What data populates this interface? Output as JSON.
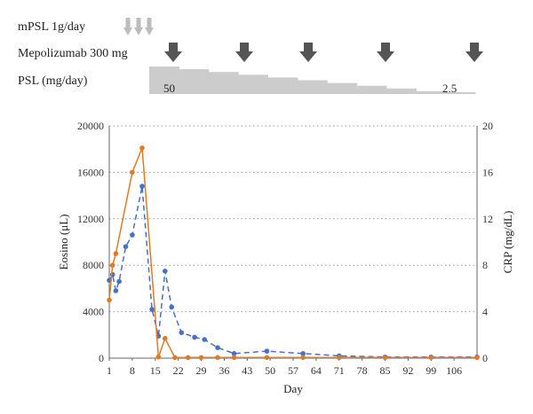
{
  "treatment": {
    "mpsl_label": "mPSL 1g/day",
    "mepolizumab_label": "Mepolizumab 300 mg",
    "psl_label": "PSL (mg/day)",
    "psl_start_value": "50",
    "psl_end_value": "2.5",
    "mpsl_doses": 3,
    "mepolizumab_doses": 5,
    "psl_step_levels": [
      50,
      45,
      40,
      35,
      30,
      25,
      20,
      15,
      10,
      5,
      2.5
    ]
  },
  "chart_data": {
    "type": "line",
    "xlabel": "Day",
    "ylabel_left": "Eosino (μL)",
    "ylabel_right": "CRP (mg/dL)",
    "x_ticks": [
      "1",
      "8",
      "15",
      "22",
      "29",
      "36",
      "43",
      "50",
      "57",
      "64",
      "71",
      "78",
      "85",
      "92",
      "99",
      "106"
    ],
    "y_left_ticks": [
      "0",
      "4000",
      "8000",
      "12000",
      "16000",
      "20000"
    ],
    "y_right_ticks": [
      "0",
      "4",
      "8",
      "12",
      "16",
      "20"
    ],
    "xlim": [
      1,
      113
    ],
    "ylim_left": [
      0,
      20000
    ],
    "ylim_right": [
      0,
      20
    ],
    "grid": true,
    "series": [
      {
        "axis": "left",
        "color": "#4472c4",
        "style": "dashed",
        "x": [
          1,
          2,
          3,
          4,
          6,
          8,
          11,
          14,
          16,
          18,
          20,
          23,
          27,
          30,
          34,
          39,
          49,
          60,
          71,
          85,
          99,
          113
        ],
        "values": [
          6700,
          7200,
          5800,
          6600,
          9600,
          10600,
          14800,
          4200,
          1900,
          7500,
          4400,
          2200,
          1800,
          1600,
          900,
          400,
          600,
          400,
          200,
          100,
          100,
          100
        ]
      },
      {
        "axis": "right",
        "color": "#e07b22",
        "style": "solid",
        "x": [
          1,
          2,
          3,
          8,
          11,
          16,
          18,
          21,
          25,
          29,
          34,
          39,
          49,
          60,
          71,
          85,
          99,
          113
        ],
        "values": [
          5,
          8,
          9,
          16,
          18.1,
          0.1,
          1.7,
          0.05,
          0.05,
          0.05,
          0.05,
          0.05,
          0.05,
          0.05,
          0.05,
          0.05,
          0.05,
          0.05
        ]
      }
    ]
  }
}
